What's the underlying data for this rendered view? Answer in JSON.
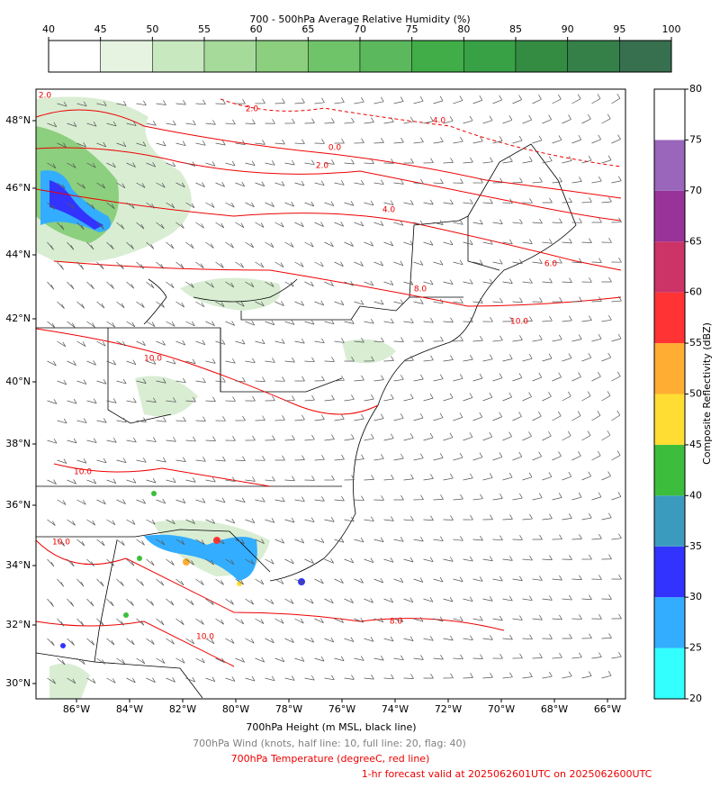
{
  "humidity_colorbar": {
    "title": "700 - 500hPa Average Relative Humidity (%)",
    "ticks": [
      40,
      45,
      50,
      55,
      60,
      65,
      70,
      75,
      80,
      85,
      90,
      95,
      100
    ],
    "colors": [
      "#ffffff",
      "#e5f3e0",
      "#c8e8c0",
      "#a6da9b",
      "#8ccf7e",
      "#6fc46a",
      "#5cb85c",
      "#40ad48",
      "#38a145",
      "#348c43",
      "#357f49",
      "#37704f"
    ]
  },
  "reflectivity_colorbar": {
    "label": "Composite Reflectivity (dBZ)",
    "ticks": [
      20,
      25,
      30,
      35,
      40,
      45,
      50,
      55,
      60,
      65,
      70,
      75,
      80
    ],
    "colors": [
      "#33ffff",
      "#33adff",
      "#3333ff",
      "#3b9bbf",
      "#3cbe3c",
      "#ffdd33",
      "#ffad33",
      "#ff3333",
      "#cc3366",
      "#993399",
      "#9966bb",
      "#ffffff"
    ]
  },
  "map": {
    "lat_labels": [
      "48°N",
      "46°N",
      "44°N",
      "42°N",
      "40°N",
      "38°N",
      "36°N",
      "34°N",
      "32°N",
      "30°N"
    ],
    "lon_labels": [
      "86°W",
      "84°W",
      "82°W",
      "80°W",
      "78°W",
      "76°W",
      "74°W",
      "72°W",
      "70°W",
      "68°W",
      "66°W"
    ],
    "contour_labels": [
      "2.0",
      "2.0",
      "0.0",
      "2.0",
      "4.0",
      "4.0",
      "8.0",
      "6.0",
      "10.0",
      "10.0",
      "10.0",
      "10.0",
      "8.0",
      "10.0"
    ]
  },
  "captions": [
    "700hPa Height (m MSL, black line)",
    "700hPa Wind (knots, half line: 10, full line: 20, flag: 40)",
    "700hPa Temperature (degreeC, red line)",
    "1-hr forecast valid at 2025062601UTC on 2025062600UTC"
  ]
}
